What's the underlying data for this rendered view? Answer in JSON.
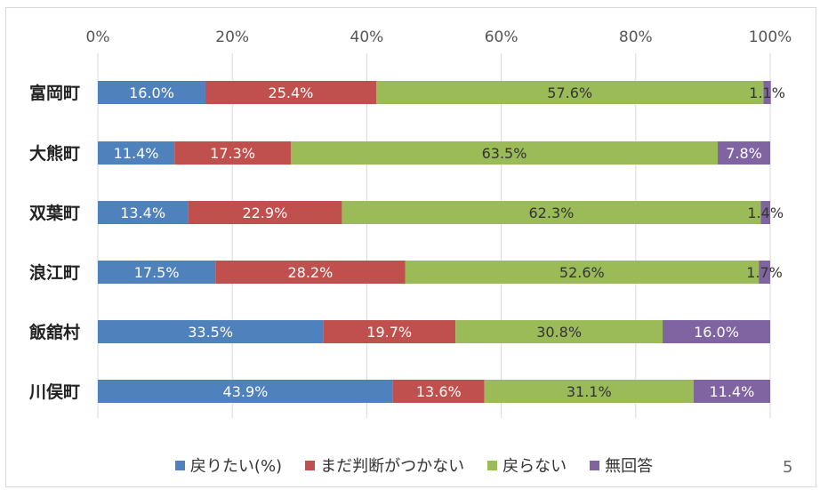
{
  "chart_data": {
    "type": "bar",
    "orientation": "horizontal",
    "stacked": true,
    "categories": [
      "富岡町",
      "大熊町",
      "双葉町",
      "浪江町",
      "飯舘村",
      "川俣町"
    ],
    "series": [
      {
        "name": "戻りたい(%)",
        "color": "#4f81bd",
        "values": [
          16.0,
          11.4,
          13.4,
          17.5,
          33.5,
          43.9
        ]
      },
      {
        "name": "まだ判断がつかない",
        "color": "#c0504d",
        "values": [
          25.4,
          17.3,
          22.9,
          28.2,
          19.7,
          13.6
        ]
      },
      {
        "name": "戻らない",
        "color": "#9bbb59",
        "values": [
          57.6,
          63.5,
          62.3,
          52.6,
          30.8,
          31.1
        ]
      },
      {
        "name": "無回答",
        "color": "#8064a2",
        "values": [
          1.1,
          7.8,
          1.4,
          1.7,
          16.0,
          11.4
        ]
      }
    ],
    "labels": [
      [
        "16.0%",
        "25.4%",
        "57.6%",
        "1.1%"
      ],
      [
        "11.4%",
        "17.3%",
        "63.5%",
        "7.8%"
      ],
      [
        "13.4%",
        "22.9%",
        "62.3%",
        "1.4%"
      ],
      [
        "17.5%",
        "28.2%",
        "52.6%",
        "1.7%"
      ],
      [
        "33.5%",
        "19.7%",
        "30.8%",
        "16.0%"
      ],
      [
        "43.9%",
        "13.6%",
        "31.1%",
        "11.4%"
      ]
    ],
    "xlim": [
      0,
      100
    ],
    "xticks": [
      "0%",
      "20%",
      "40%",
      "60%",
      "80%",
      "100%"
    ],
    "grid": true,
    "legend_position": "bottom"
  },
  "page_number": "5"
}
